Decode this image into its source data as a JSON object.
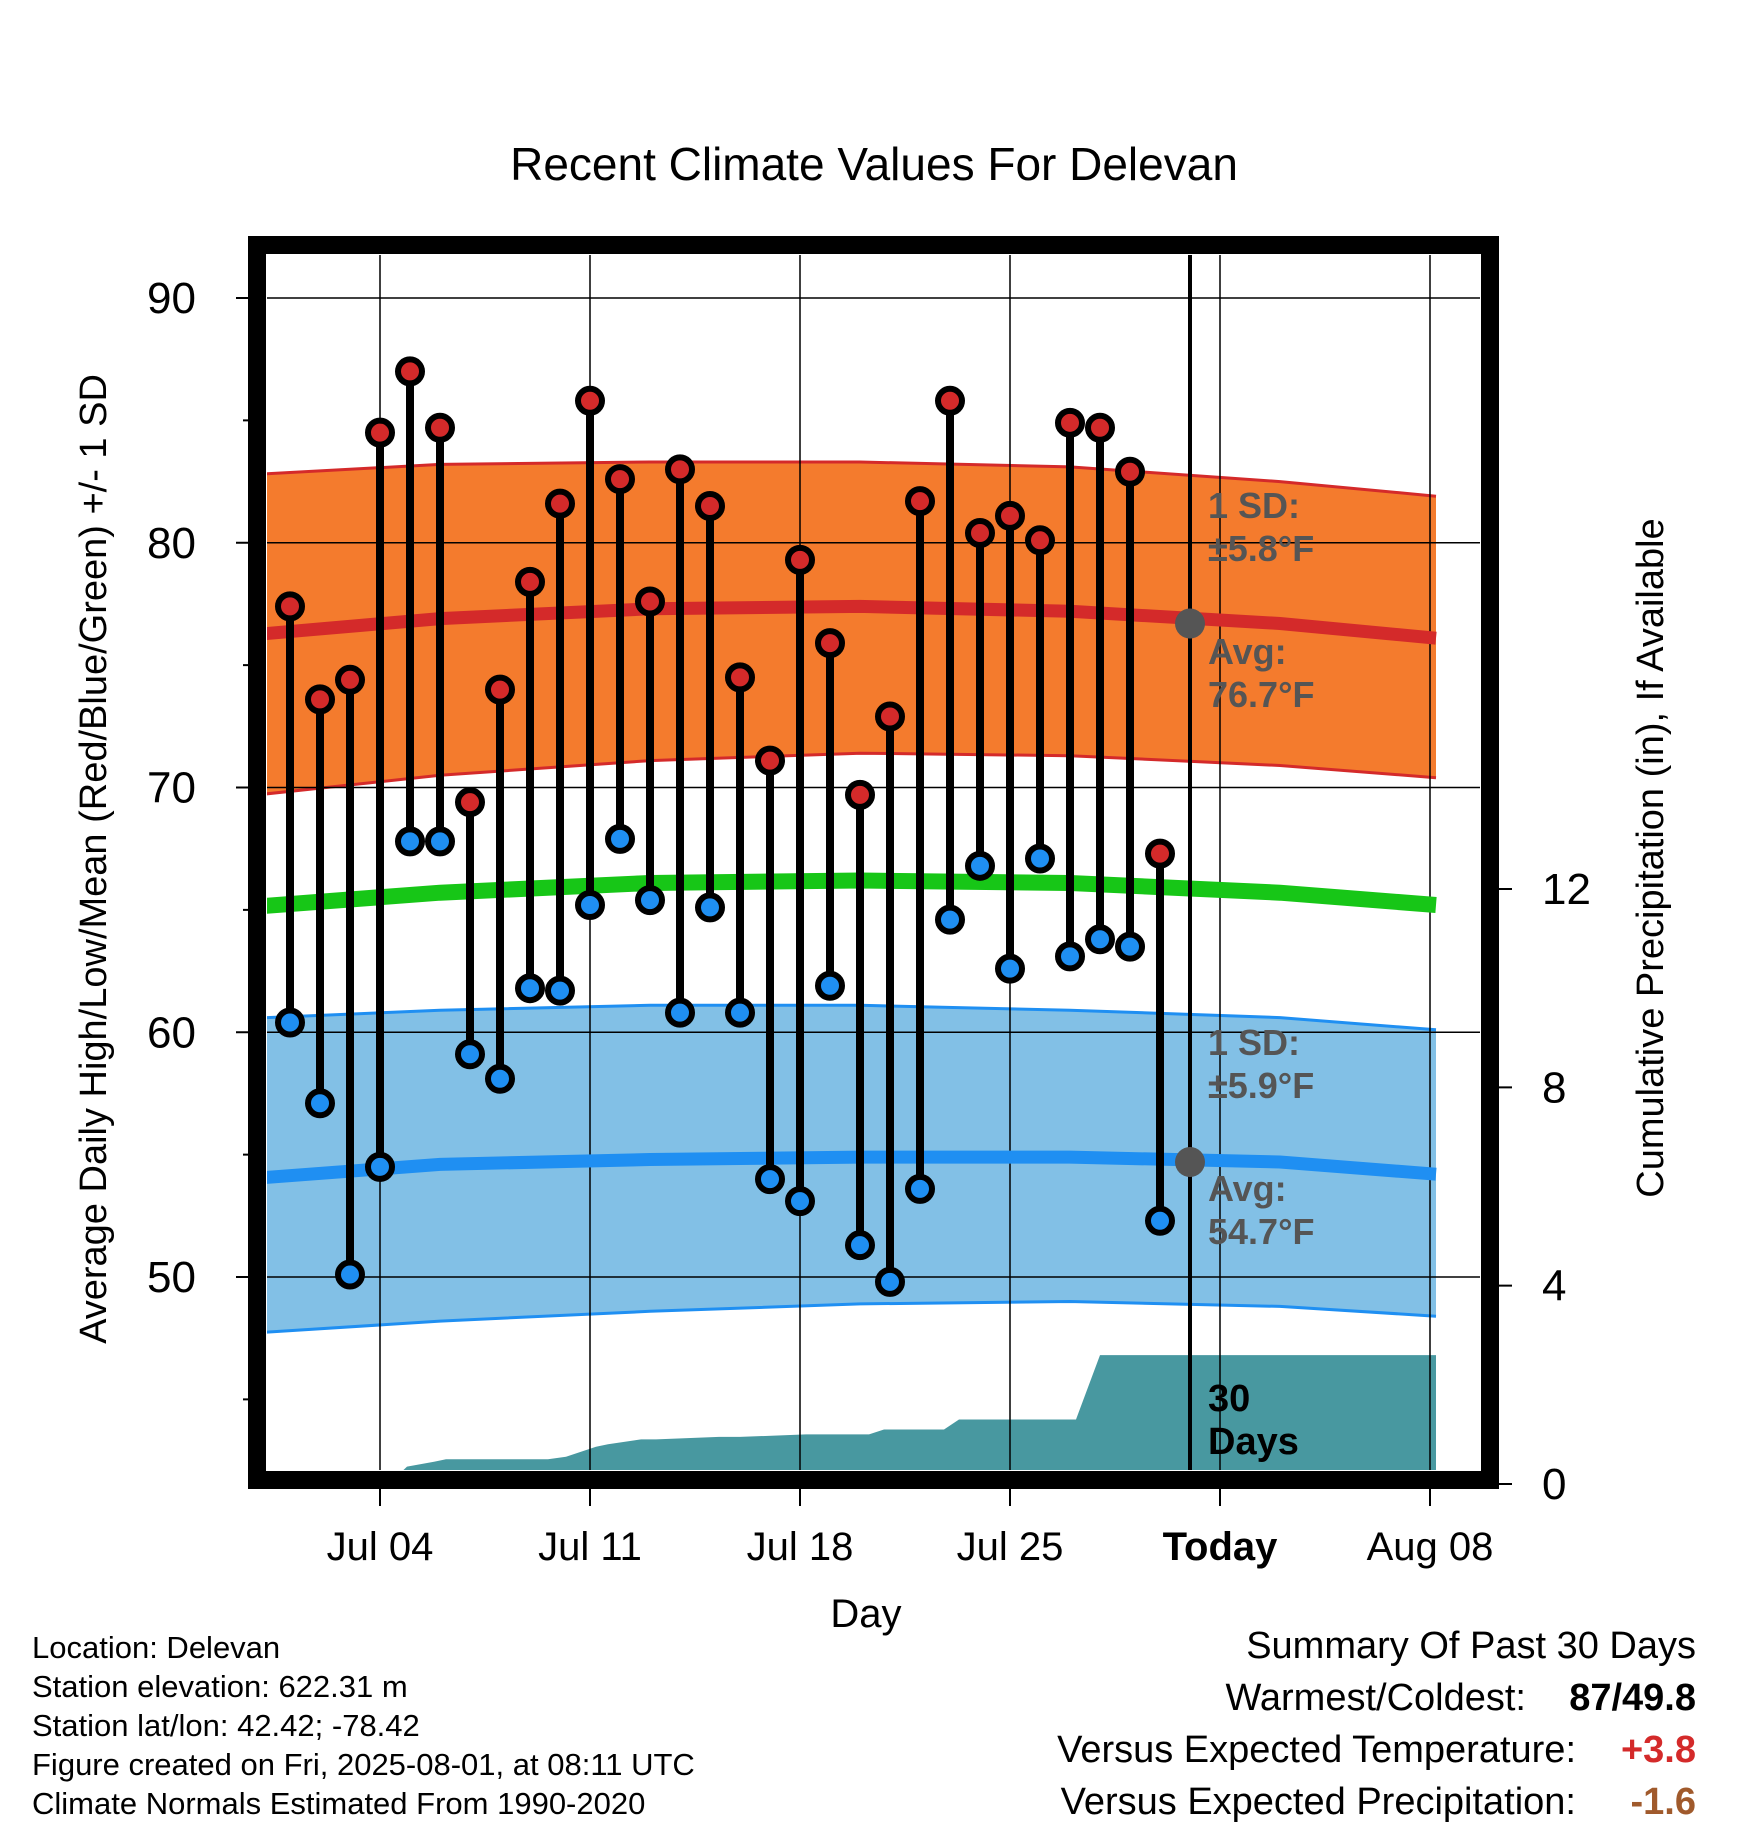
{
  "chart_data": {
    "type": "bar",
    "title": "Recent Climate Values For Delevan",
    "xlabel": "Day",
    "ylabel": "Average Daily High/Low/Mean (Red/Blue/Green) +/- 1 SD",
    "y2label": "Cumulative Precipitation (in), If Available",
    "ylim": [
      42,
      93
    ],
    "y_ticks": [
      "90",
      "80",
      "70",
      "60",
      "50"
    ],
    "y2_ticks": [
      "0",
      "4",
      "8",
      "12"
    ],
    "x_ticks": [
      "Jul 04",
      "Jul 11",
      "Jul 18",
      "Jul 25",
      "Today",
      "Aug 08"
    ],
    "today_day_index": 30,
    "daily_high": [
      77.4,
      73.6,
      74.4,
      84.5,
      87.0,
      84.7,
      69.4,
      74.0,
      78.4,
      81.6,
      85.8,
      82.6,
      77.6,
      83.0,
      81.5,
      74.5,
      71.1,
      79.3,
      75.9,
      69.7,
      72.9,
      81.7,
      85.8,
      80.4,
      81.1,
      80.1,
      84.9,
      84.7,
      82.9,
      67.3
    ],
    "daily_low": [
      60.4,
      57.1,
      50.1,
      54.5,
      67.8,
      67.8,
      59.1,
      58.1,
      61.8,
      61.7,
      65.2,
      67.9,
      65.4,
      60.8,
      65.1,
      60.8,
      54.0,
      53.1,
      61.9,
      51.3,
      49.8,
      53.6,
      64.6,
      66.8,
      62.6,
      67.1,
      63.1,
      63.8,
      63.5,
      52.3
    ],
    "normal_high": {
      "x": [
        -2.6,
        5,
        12,
        19,
        26,
        33,
        38.2
      ],
      "values": [
        76.1,
        76.9,
        77.3,
        77.4,
        77.2,
        76.7,
        76.1
      ]
    },
    "normal_high_sd_band": {
      "x": [
        -2.6,
        5,
        12,
        19,
        26,
        33,
        38.2
      ],
      "upper": [
        82.7,
        83.2,
        83.3,
        83.3,
        83.1,
        82.5,
        81.9
      ],
      "lower": [
        69.5,
        70.5,
        71.1,
        71.4,
        71.3,
        70.9,
        70.4
      ]
    },
    "normal_low": {
      "x": [
        -2.6,
        5,
        12,
        19,
        26,
        33,
        38.2
      ],
      "values": [
        53.9,
        54.6,
        54.8,
        54.9,
        54.9,
        54.7,
        54.2
      ]
    },
    "normal_low_sd_band": {
      "x": [
        -2.6,
        5,
        12,
        19,
        26,
        33,
        38.2
      ],
      "upper": [
        60.5,
        60.9,
        61.1,
        61.1,
        60.9,
        60.6,
        60.1
      ],
      "lower": [
        47.6,
        48.2,
        48.6,
        48.9,
        49.0,
        48.8,
        48.4
      ]
    },
    "normal_mean": {
      "x": [
        -2.6,
        5,
        12,
        19,
        26,
        33,
        38.2
      ],
      "values": [
        65.0,
        65.7,
        66.1,
        66.2,
        66.1,
        65.7,
        65.2
      ]
    },
    "cumulative_precip": {
      "x": [
        3.3,
        3.9,
        4.8,
        5.2,
        8.6,
        9.2,
        10.2,
        10.6,
        11.7,
        12.2,
        14.3,
        15.0,
        17.2,
        17.7,
        19.3,
        19.8,
        21.8,
        22.3,
        26.2,
        27.0,
        32.9,
        38.2
      ],
      "values": [
        0.0,
        0.35,
        0.45,
        0.5,
        0.5,
        0.55,
        0.75,
        0.8,
        0.9,
        0.9,
        0.95,
        0.95,
        1.0,
        1.0,
        1.0,
        1.1,
        1.1,
        1.3,
        1.3,
        2.6,
        2.6,
        2.6
      ]
    },
    "annotations": {
      "high_sd_label": "1 SD:",
      "high_sd_value": "±5.8°F",
      "high_avg_label": "Avg:",
      "high_avg_value": "76.7°F",
      "low_sd_label": "1 SD:",
      "low_sd_value": "±5.9°F",
      "low_avg_label": "Avg:",
      "low_avg_value": "54.7°F",
      "days_num": "30",
      "days_word": "Days"
    },
    "grid": true,
    "colors": {
      "high_band": "#f47b2d",
      "high_line": "#d42a2a",
      "low_band": "#82c0e6",
      "low_line": "#1f8ff2",
      "mean_line": "#17c617",
      "precip": "#4898a0",
      "high_dot": "#d42a2a",
      "low_dot": "#1f8ff2",
      "today_dot": "#555555",
      "annotation": "#555555"
    }
  },
  "info": {
    "location": "Location: Delevan",
    "elevation": "Station elevation: 622.31 m",
    "latlon": "Station lat/lon: 42.42; -78.42",
    "created": "Figure created on Fri, 2025-08-01, at 08:11 UTC",
    "normals": "Climate Normals Estimated From 1990-2020"
  },
  "summary": {
    "title": "Summary Of Past 30 Days",
    "warm_label": "Warmest/Coldest:",
    "warm_high": "87",
    "warm_sep": "/",
    "warm_low": "49.8",
    "temp_label": "Versus Expected Temperature:",
    "temp_value": "+3.8",
    "temp_color": "#d42a2a",
    "prec_label": "Versus Expected Precipitation:",
    "prec_value": "-1.6",
    "prec_color": "#a05a2c"
  }
}
